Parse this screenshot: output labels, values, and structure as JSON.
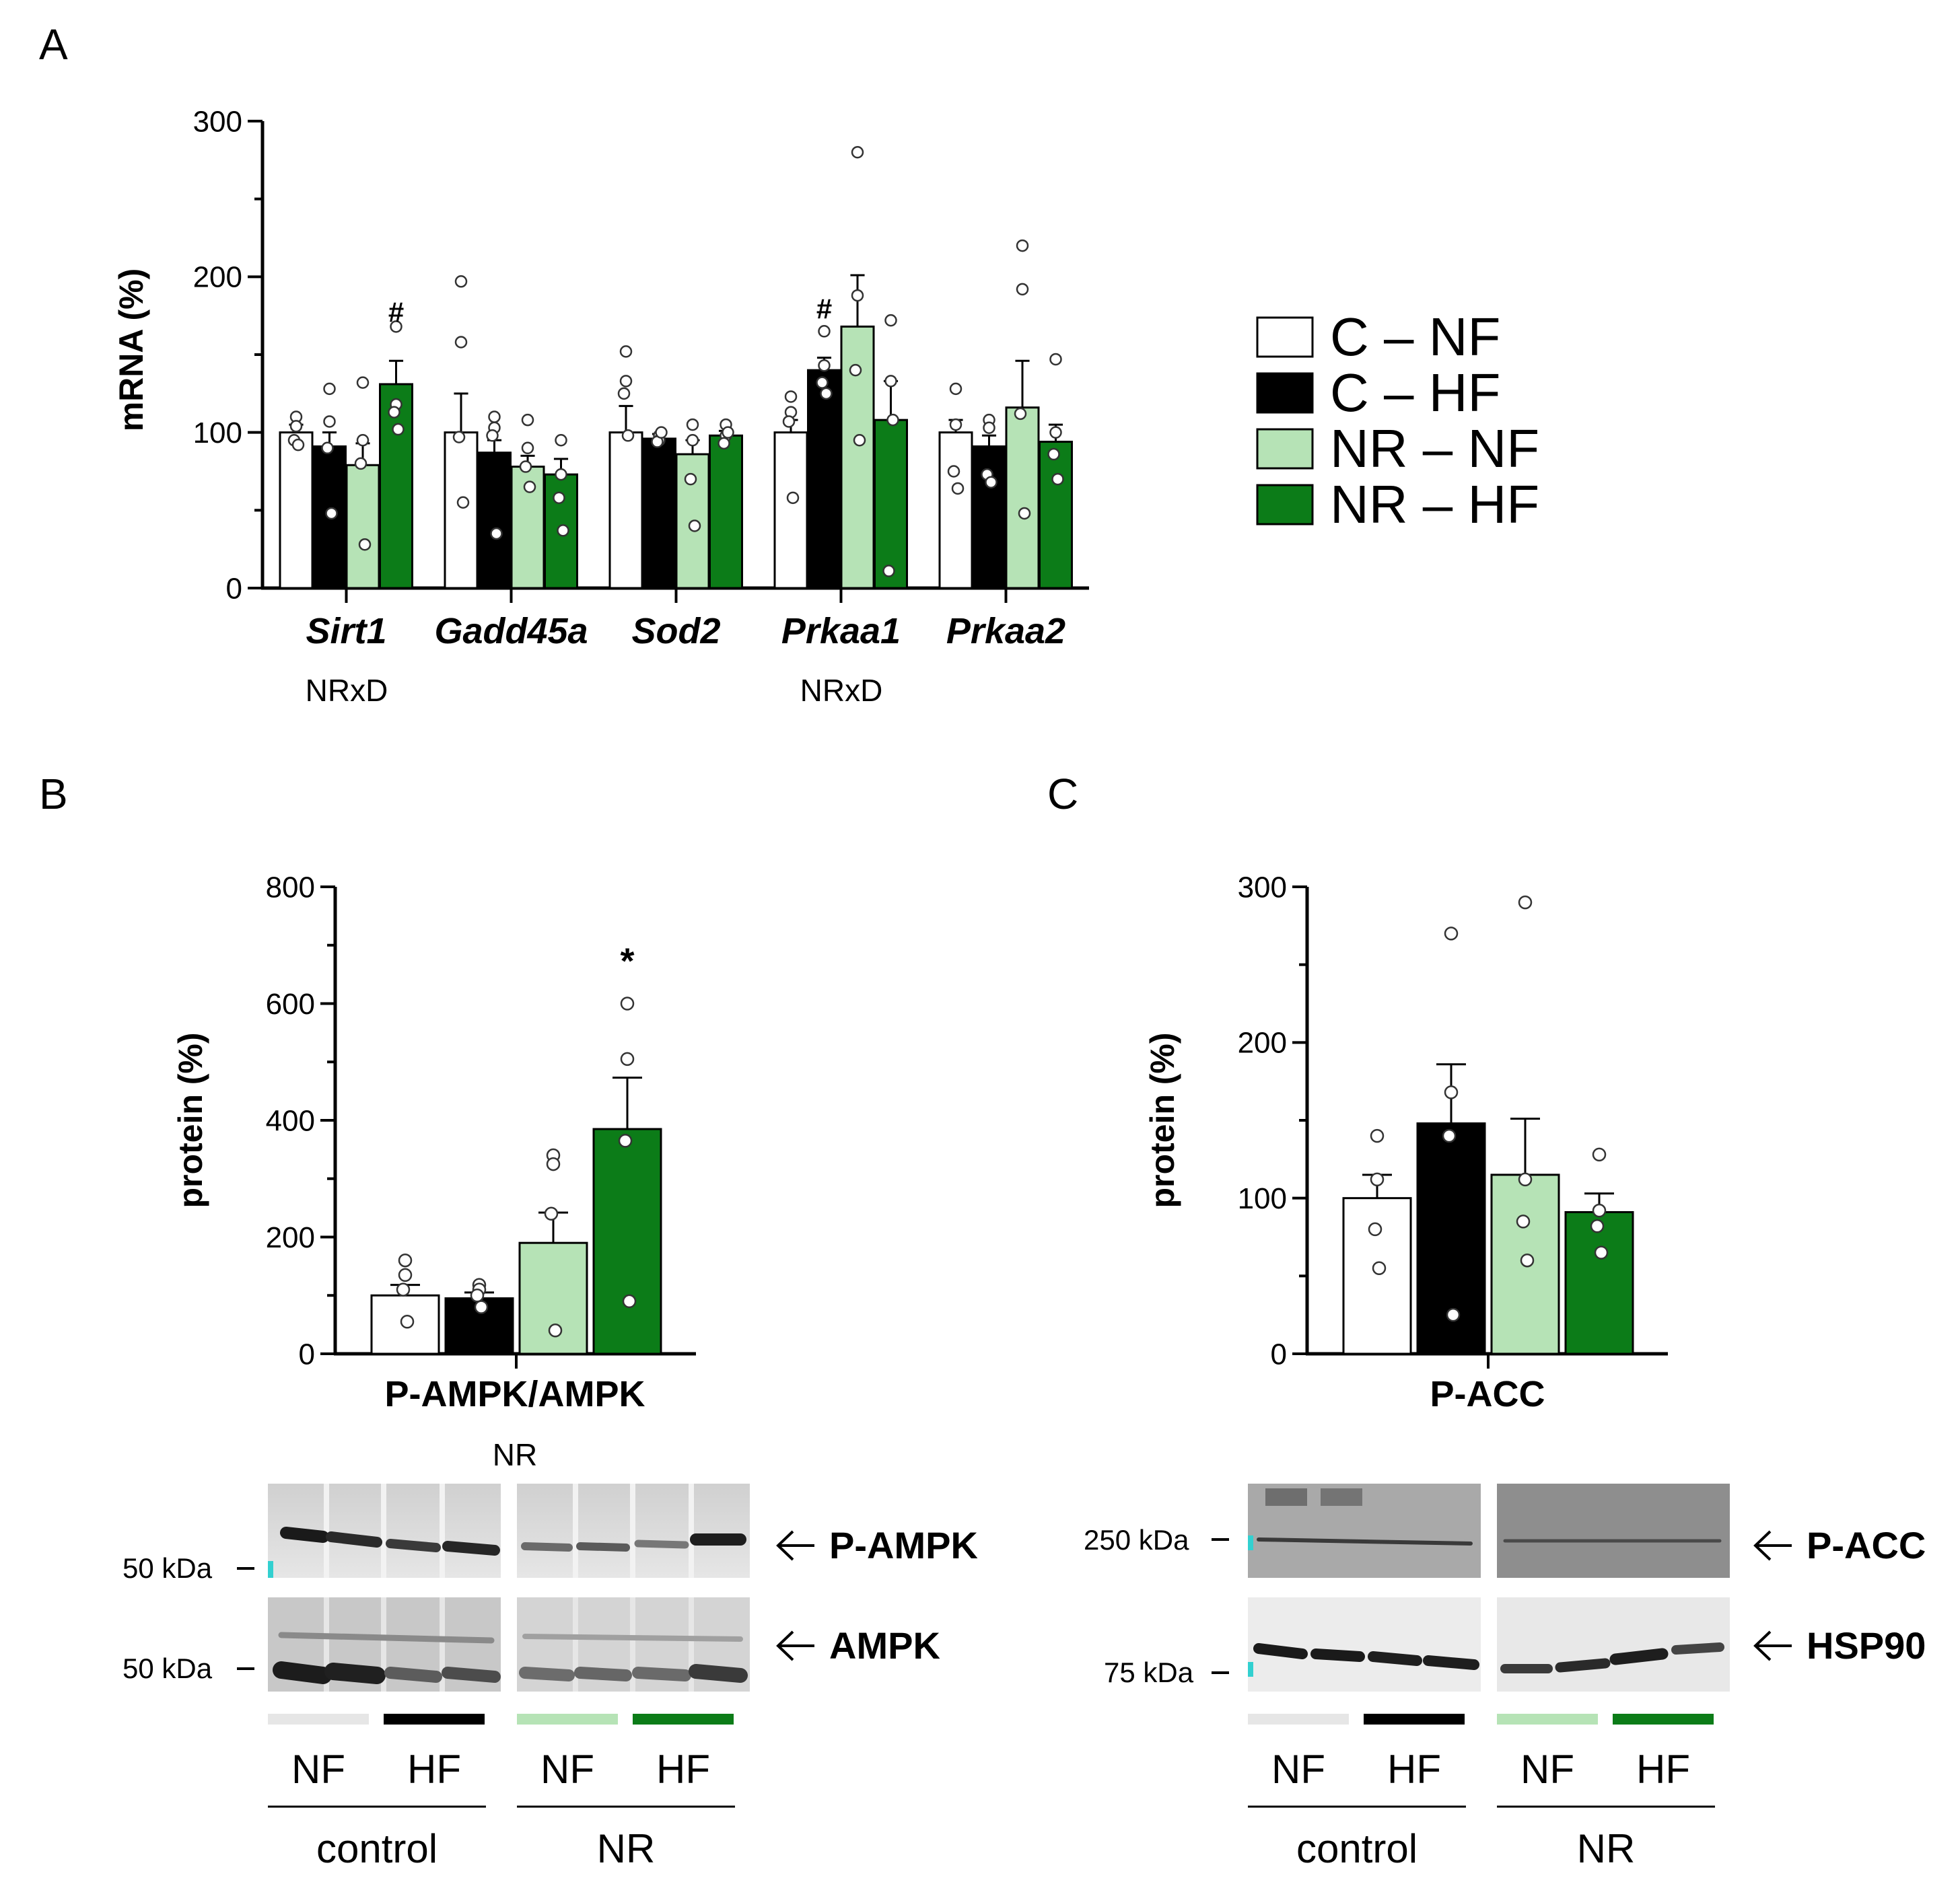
{
  "colors": {
    "c_nf": "#ffffff",
    "c_hf": "#000000",
    "nr_nf": "#b6e3b6",
    "nr_hf": "#0c7c18"
  },
  "panels": {
    "A": "A",
    "B": "B",
    "C": "C"
  },
  "legend": [
    {
      "label": "C – NF",
      "color": "#ffffff"
    },
    {
      "label": "C – HF",
      "color": "#000000"
    },
    {
      "label": "NR – NF",
      "color": "#b6e3b6"
    },
    {
      "label": "NR – HF",
      "color": "#0c7c18"
    }
  ],
  "chart_data": [
    {
      "id": "A",
      "type": "bar",
      "ylabel": "mRNA (%)",
      "ylim": [
        0,
        300
      ],
      "yticks": [
        0,
        100,
        200,
        300
      ],
      "categories": [
        "Sirt1",
        "Gadd45a",
        "Sod2",
        "Prkaa1",
        "Prkaa2"
      ],
      "series": [
        {
          "name": "C – NF",
          "values": [
            100,
            100,
            100,
            100,
            100
          ],
          "err": [
            5,
            25,
            17,
            8,
            8
          ]
        },
        {
          "name": "C – HF",
          "values": [
            91,
            87,
            96,
            140,
            91
          ],
          "err": [
            9,
            8,
            3,
            8,
            7
          ]
        },
        {
          "name": "NR – NF",
          "values": [
            79,
            78,
            86,
            168,
            116
          ],
          "err": [
            14,
            7,
            9,
            33,
            30
          ]
        },
        {
          "name": "NR – HF",
          "values": [
            131,
            73,
            98,
            108,
            94
          ],
          "err": [
            15,
            10,
            3,
            25,
            11
          ]
        }
      ],
      "points": [
        [
          [
            110,
            104,
            95,
            92
          ],
          [
            128,
            107,
            90,
            48
          ],
          [
            132,
            95,
            80,
            28
          ],
          [
            168,
            118,
            113,
            102
          ]
        ],
        [
          [
            197,
            158,
            97,
            55
          ],
          [
            110,
            103,
            98,
            35
          ],
          [
            108,
            90,
            78,
            65
          ],
          [
            95,
            73,
            58,
            37
          ]
        ],
        [
          [
            152,
            133,
            125,
            98
          ],
          [
            98,
            95,
            94,
            100
          ],
          [
            105,
            95,
            70,
            40
          ],
          [
            105,
            98,
            93,
            100
          ]
        ],
        [
          [
            123,
            113,
            107,
            58
          ],
          [
            165,
            143,
            132,
            125
          ],
          [
            280,
            188,
            140,
            95
          ],
          [
            172,
            133,
            11,
            108
          ]
        ],
        [
          [
            128,
            105,
            75,
            64
          ],
          [
            108,
            103,
            73,
            68
          ],
          [
            220,
            192,
            112,
            48
          ],
          [
            147,
            100,
            86,
            70
          ]
        ]
      ],
      "annotations": [
        {
          "category": "Sirt1",
          "series": 3,
          "text": "#"
        },
        {
          "category": "Prkaa1",
          "series": 1,
          "text": "#"
        }
      ],
      "effects": [
        {
          "category": "Sirt1",
          "text": "NRxD"
        },
        {
          "category": "Prkaa1",
          "text": "NRxD"
        }
      ]
    },
    {
      "id": "B",
      "type": "bar",
      "title": "P-AMPK/AMPK",
      "effect": "NR",
      "ylabel": "protein (%)",
      "ylim": [
        0,
        800
      ],
      "yticks": [
        0,
        200,
        400,
        600,
        800
      ],
      "series_names": [
        "C – NF",
        "C – HF",
        "NR – NF",
        "NR – HF"
      ],
      "values": [
        100,
        95,
        190,
        385
      ],
      "err": [
        18,
        10,
        52,
        88
      ],
      "points": [
        [
          160,
          135,
          110,
          55
        ],
        [
          118,
          110,
          100,
          80
        ],
        [
          340,
          325,
          240,
          40
        ],
        [
          600,
          505,
          365,
          90
        ]
      ],
      "annotation": {
        "series": 3,
        "text": "*"
      }
    },
    {
      "id": "C",
      "type": "bar",
      "title": "P-ACC",
      "ylabel": "protein (%)",
      "ylim": [
        0,
        300
      ],
      "yticks": [
        0,
        100,
        200,
        300
      ],
      "series_names": [
        "C – NF",
        "C – HF",
        "NR – NF",
        "NR – HF"
      ],
      "values": [
        100,
        148,
        115,
        91
      ],
      "err": [
        15,
        38,
        36,
        12
      ],
      "points": [
        [
          140,
          112,
          80,
          55
        ],
        [
          270,
          168,
          140,
          25
        ],
        [
          290,
          112,
          85,
          60
        ],
        [
          128,
          92,
          82,
          65
        ]
      ]
    }
  ],
  "blot_b": {
    "rows": [
      {
        "label": "P-AMPK",
        "kda": "50 kDa"
      },
      {
        "label": "AMPK",
        "kda": "50 kDa"
      }
    ],
    "groups": [
      {
        "name": "control",
        "lanes": [
          "NF",
          "HF"
        ]
      },
      {
        "name": "NR",
        "lanes": [
          "NF",
          "HF"
        ]
      }
    ]
  },
  "blot_c": {
    "rows": [
      {
        "label": "P-ACC",
        "kda": "250 kDa"
      },
      {
        "label": "HSP90",
        "kda": "75 kDa"
      }
    ],
    "groups": [
      {
        "name": "control",
        "lanes": [
          "NF",
          "HF"
        ]
      },
      {
        "name": "NR",
        "lanes": [
          "NF",
          "HF"
        ]
      }
    ]
  }
}
